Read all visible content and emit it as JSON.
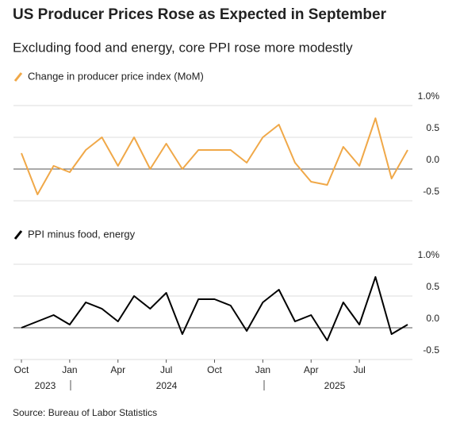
{
  "title": "US Producer Prices Rose as Expected in September",
  "subtitle": "Excluding food and energy, core PPI rose more modestly",
  "source": "Source: Bureau of Labor Statistics",
  "chart_data": [
    {
      "type": "line",
      "series": [
        {
          "name": "Change in producer price index (MoM)",
          "color": "#f0a848",
          "values": [
            0.25,
            -0.4,
            0.05,
            -0.05,
            0.3,
            0.5,
            0.05,
            0.5,
            0.0,
            0.4,
            0.0,
            0.3,
            0.3,
            0.3,
            0.1,
            0.5,
            0.7,
            0.1,
            -0.2,
            -0.25,
            0.35,
            0.05,
            0.8,
            -0.15,
            0.3
          ]
        }
      ],
      "ylim": [
        -0.5,
        1
      ],
      "yticks": [
        {
          "value": 1,
          "label": "1.0%"
        },
        0.5,
        {
          "value": 0,
          "label": "0.0"
        },
        -0.5
      ],
      "grid": true
    },
    {
      "type": "line",
      "series": [
        {
          "name": "PPI minus food, energy",
          "color": "#000000",
          "values": [
            0.0,
            0.1,
            0.2,
            0.05,
            0.4,
            0.3,
            0.1,
            0.5,
            0.3,
            0.55,
            -0.1,
            0.45,
            0.45,
            0.35,
            -0.05,
            0.4,
            0.6,
            0.1,
            0.2,
            -0.2,
            0.4,
            0.05,
            0.8,
            -0.1,
            0.05
          ]
        }
      ],
      "categories": [
        "Oct",
        null,
        null,
        "Jan",
        null,
        null,
        "Apr",
        null,
        null,
        "Jul",
        null,
        null,
        "Oct",
        null,
        null,
        "Jan",
        null,
        null,
        "Apr",
        null,
        null,
        "Jul",
        null,
        null,
        null
      ],
      "x_groups": [
        "2023",
        "2024",
        "2025"
      ],
      "ylim": [
        -0.5,
        1
      ],
      "yticks": [
        {
          "value": 1,
          "label": "1.0%"
        },
        0.5,
        {
          "value": 0,
          "label": "0.0"
        },
        -0.5
      ],
      "grid": true
    }
  ]
}
